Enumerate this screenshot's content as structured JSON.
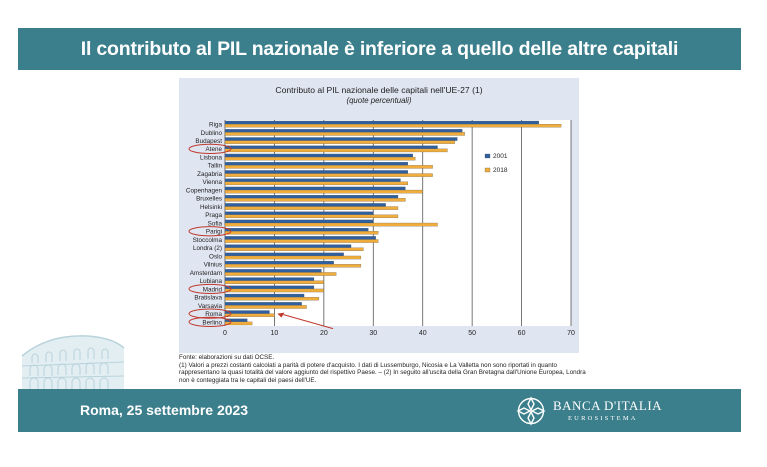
{
  "slide": {
    "title": "Il contributo al PIL nazionale è inferiore a quello delle altre capitali",
    "footer_date": "Roma, 25 settembre 2023",
    "bank_name": "BANCA D'ITALIA",
    "bank_sub": "EUROSISTEMA",
    "accent_color": "#3c7f8c"
  },
  "notes": {
    "source": "Fonte: elaborazioni su dati OCSE.",
    "note1": "(1) Valori a prezzi costanti calcolati a parità di potere d'acquisto. I dati di Lussemburgo, Nicosia e La Valletta non sono riportati in quanto rappresentano la quasi totalità del valore aggiunto del rispettivo Paese. – (2) In seguito all'uscita della Gran Bretagna dall'Unione Europea, Londra non è conteggiata tra le capitali dei paesi dell'UE."
  },
  "chart_data": {
    "type": "bar",
    "orientation": "horizontal",
    "title": "Contributo al PIL nazionale delle capitali nell'UE-27 (1)",
    "subtitle": "(quote percentuali)",
    "xlim": [
      0,
      70
    ],
    "xticks": [
      0,
      10,
      20,
      30,
      40,
      50,
      60,
      70
    ],
    "grid": true,
    "legend_position": "right",
    "categories": [
      "Riga",
      "Dublino",
      "Budapest",
      "Atene",
      "Lisbona",
      "Tallin",
      "Zagabria",
      "Vienna",
      "Copenhagen",
      "Bruxelles",
      "Helsinki",
      "Praga",
      "Sofia",
      "Parigi",
      "Stoccolma",
      "Londra (2)",
      "Oslo",
      "Vilnius",
      "Amsterdam",
      "Lubiana",
      "Madrid",
      "Bratislava",
      "Varsavia",
      "Roma",
      "Berlino"
    ],
    "highlighted": [
      "Atene",
      "Parigi",
      "Madrid",
      "Roma",
      "Berlino"
    ],
    "series": [
      {
        "name": "2001",
        "color": "#2f5f9e",
        "values": [
          63.5,
          48.0,
          47.0,
          43.0,
          38.0,
          37.0,
          37.0,
          35.5,
          36.5,
          35.0,
          32.5,
          30.0,
          30.0,
          29.0,
          30.5,
          25.5,
          24.0,
          22.0,
          19.5,
          18.0,
          18.0,
          16.0,
          15.5,
          9.0,
          4.5
        ]
      },
      {
        "name": "2018",
        "color": "#f0ad3c",
        "values": [
          68.0,
          48.5,
          46.5,
          45.0,
          38.5,
          42.0,
          42.0,
          37.0,
          40.0,
          36.5,
          35.0,
          35.0,
          43.0,
          31.0,
          31.0,
          28.0,
          27.5,
          27.5,
          22.5,
          20.0,
          20.0,
          19.0,
          16.5,
          10.0,
          5.5
        ]
      }
    ]
  }
}
